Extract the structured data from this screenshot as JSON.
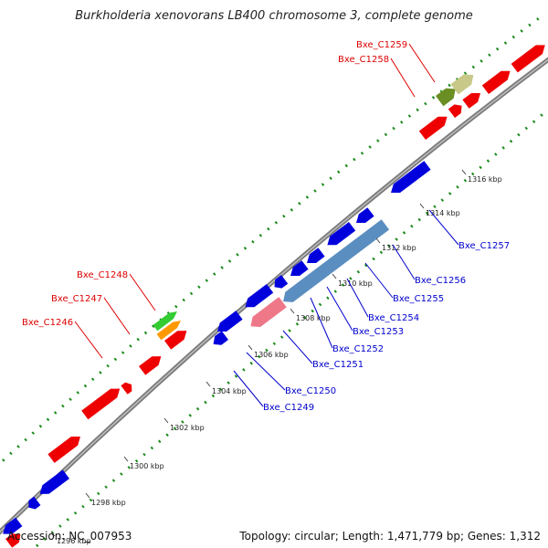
{
  "title": "Burkholderia xenovorans LB400 chromosome 3, complete genome",
  "footer": {
    "accession": "Accession: NC_007953",
    "summary": "Topology: circular; Length: 1,471,779 bp; Genes: 1,312"
  },
  "colors": {
    "forward_gene": "#ee0000",
    "reverse_gene": "#0000dd",
    "forward_label": "#dd0000",
    "reverse_label": "#0000cc",
    "backbone": "#7a7a7a",
    "dotted_track": "#1a8a1a",
    "highlight_green": "#33cc33",
    "highlight_orange": "#ff9900",
    "highlight_olive": "#6b8e23",
    "highlight_khaki": "#c8c888",
    "highlight_steel": "#5a8ec0",
    "highlight_pink": "#ee7788"
  },
  "ticks": [
    {
      "label": "1296 kbp"
    },
    {
      "label": "1298 kbp"
    },
    {
      "label": "1300 kbp"
    },
    {
      "label": "1302 kbp"
    },
    {
      "label": "1304 kbp"
    },
    {
      "label": "1306 kbp"
    },
    {
      "label": "1308 kbp"
    },
    {
      "label": "1310 kbp"
    },
    {
      "label": "1312 kbp"
    },
    {
      "label": "1314 kbp"
    },
    {
      "label": "1316 kbp"
    }
  ],
  "gene_labels": [
    {
      "label": "Bxe_C1259",
      "strand": "forward"
    },
    {
      "label": "Bxe_C1258",
      "strand": "forward"
    },
    {
      "label": "Bxe_C1248",
      "strand": "forward"
    },
    {
      "label": "Bxe_C1247",
      "strand": "forward"
    },
    {
      "label": "Bxe_C1246",
      "strand": "forward"
    },
    {
      "label": "Bxe_C1257",
      "strand": "reverse"
    },
    {
      "label": "Bxe_C1256",
      "strand": "reverse"
    },
    {
      "label": "Bxe_C1255",
      "strand": "reverse"
    },
    {
      "label": "Bxe_C1254",
      "strand": "reverse"
    },
    {
      "label": "Bxe_C1253",
      "strand": "reverse"
    },
    {
      "label": "Bxe_C1252",
      "strand": "reverse"
    },
    {
      "label": "Bxe_C1251",
      "strand": "reverse"
    },
    {
      "label": "Bxe_C1250",
      "strand": "reverse"
    },
    {
      "label": "Bxe_C1249",
      "strand": "reverse"
    }
  ]
}
